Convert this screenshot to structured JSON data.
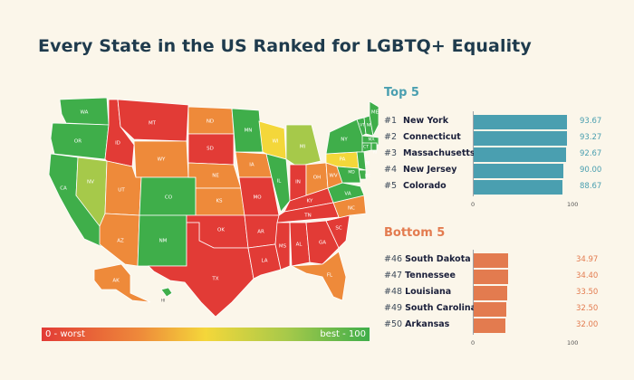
{
  "title": "Every State in the US Ranked for LGBTQ+ Equality",
  "legend": {
    "low_label": "0 - worst",
    "high_label": "best - 100"
  },
  "colors": {
    "background": "#fbf6ea",
    "top_bars": "#4a9fb0",
    "bottom_bars": "#e37b4f",
    "top_heading": "#4a9fb0",
    "bottom_heading": "#e37b4f",
    "scale": [
      "#e23b36",
      "#ee8a3a",
      "#f4d73a",
      "#a6c94a",
      "#3fae4a"
    ]
  },
  "chart_data": [
    {
      "type": "bar",
      "orientation": "horizontal",
      "title": "Top 5",
      "xlim": [
        0,
        100
      ],
      "ticks": [
        "0",
        "100"
      ],
      "ranks": [
        "#1",
        "#2",
        "#3",
        "#4",
        "#5"
      ],
      "categories": [
        "New York",
        "Connecticut",
        "Massachusetts",
        "New Jersey",
        "Colorado"
      ],
      "values": [
        93.67,
        93.27,
        92.67,
        90.0,
        88.67
      ],
      "value_labels": [
        "93.67",
        "93.27",
        "92.67",
        "90.00",
        "88.67"
      ]
    },
    {
      "type": "bar",
      "orientation": "horizontal",
      "title": "Bottom 5",
      "xlim": [
        0,
        100
      ],
      "ticks": [
        "0",
        "100"
      ],
      "ranks": [
        "#46",
        "#47",
        "#48",
        "#49",
        "#50"
      ],
      "categories": [
        "South Dakota",
        "Tennessee",
        "Louisiana",
        "South Carolina",
        "Arkansas"
      ],
      "values": [
        34.97,
        34.4,
        33.5,
        32.5,
        32.0
      ],
      "value_labels": [
        "34.97",
        "34.40",
        "33.50",
        "32.50",
        "32.00"
      ]
    }
  ],
  "map": {
    "type": "choropleth",
    "states": [
      {
        "abbr": "WA",
        "tier": 4
      },
      {
        "abbr": "OR",
        "tier": 4
      },
      {
        "abbr": "CA",
        "tier": 4
      },
      {
        "abbr": "NV",
        "tier": 3
      },
      {
        "abbr": "ID",
        "tier": 0
      },
      {
        "abbr": "MT",
        "tier": 0
      },
      {
        "abbr": "WY",
        "tier": 1
      },
      {
        "abbr": "UT",
        "tier": 1
      },
      {
        "abbr": "AZ",
        "tier": 1
      },
      {
        "abbr": "CO",
        "tier": 4
      },
      {
        "abbr": "NM",
        "tier": 4
      },
      {
        "abbr": "ND",
        "tier": 1
      },
      {
        "abbr": "SD",
        "tier": 0
      },
      {
        "abbr": "NE",
        "tier": 1
      },
      {
        "abbr": "KS",
        "tier": 1
      },
      {
        "abbr": "OK",
        "tier": 0
      },
      {
        "abbr": "TX",
        "tier": 0
      },
      {
        "abbr": "MN",
        "tier": 4
      },
      {
        "abbr": "IA",
        "tier": 1
      },
      {
        "abbr": "MO",
        "tier": 0
      },
      {
        "abbr": "AR",
        "tier": 0
      },
      {
        "abbr": "LA",
        "tier": 0
      },
      {
        "abbr": "WI",
        "tier": 2
      },
      {
        "abbr": "IL",
        "tier": 4
      },
      {
        "abbr": "MI",
        "tier": 3
      },
      {
        "abbr": "IN",
        "tier": 0
      },
      {
        "abbr": "OH",
        "tier": 1
      },
      {
        "abbr": "KY",
        "tier": 0
      },
      {
        "abbr": "TN",
        "tier": 0
      },
      {
        "abbr": "MS",
        "tier": 0
      },
      {
        "abbr": "AL",
        "tier": 0
      },
      {
        "abbr": "GA",
        "tier": 0
      },
      {
        "abbr": "FL",
        "tier": 1
      },
      {
        "abbr": "SC",
        "tier": 0
      },
      {
        "abbr": "NC",
        "tier": 1
      },
      {
        "abbr": "VA",
        "tier": 4
      },
      {
        "abbr": "WV",
        "tier": 1
      },
      {
        "abbr": "PA",
        "tier": 2
      },
      {
        "abbr": "NY",
        "tier": 4
      },
      {
        "abbr": "VT",
        "tier": 4
      },
      {
        "abbr": "NH",
        "tier": 4
      },
      {
        "abbr": "ME",
        "tier": 4
      },
      {
        "abbr": "MA",
        "tier": 4
      },
      {
        "abbr": "CT",
        "tier": 4
      },
      {
        "abbr": "RI",
        "tier": 4
      },
      {
        "abbr": "NJ",
        "tier": 4
      },
      {
        "abbr": "DE",
        "tier": 4
      },
      {
        "abbr": "MD",
        "tier": 4
      },
      {
        "abbr": "AK",
        "tier": 1
      },
      {
        "abbr": "HI",
        "tier": 4
      }
    ]
  }
}
